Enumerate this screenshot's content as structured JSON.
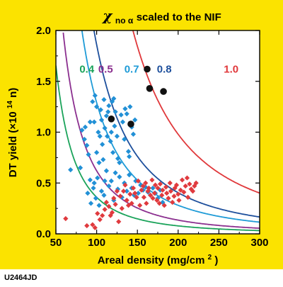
{
  "figure_id": "U2464JD",
  "chart_data": {
    "type": "scatter",
    "title_symbol": "χ",
    "title_subscript": "no α",
    "title_rest": " scaled to the NIF",
    "xlabel_main": "Areal density (mg/cm",
    "xlabel_sup": "2",
    "xlabel_end": ")",
    "ylabel_main": "DT yield (×10",
    "ylabel_sup": "14",
    "ylabel_end": " n)",
    "xlim": [
      50,
      300
    ],
    "ylim": [
      0,
      2.0
    ],
    "xticks": [
      50,
      100,
      150,
      200,
      250,
      300
    ],
    "yticks": [
      0.0,
      0.5,
      1.0,
      1.5,
      2.0
    ],
    "ytick_labels": [
      "0.0",
      "0.5",
      "1.0",
      "1.5",
      "2.0"
    ],
    "curves": [
      {
        "label": "0.4",
        "color": "#1aa35a",
        "k": 36,
        "label_x": 88,
        "label_y": 1.62
      },
      {
        "label": "0.5",
        "color": "#8b2f8f",
        "k": 62,
        "label_x": 111,
        "label_y": 1.62
      },
      {
        "label": "0.7",
        "color": "#1e9bd7",
        "k": 129,
        "label_x": 143,
        "label_y": 1.62
      },
      {
        "label": "0.8",
        "color": "#1d4f9c",
        "k": 186,
        "label_x": 183,
        "label_y": 1.62
      },
      {
        "label": "1.0",
        "color": "#e0383b",
        "k": 450,
        "label_x": 265,
        "label_y": 1.62
      }
    ],
    "series": [
      {
        "marker": "diamond",
        "color": "#2190d6",
        "points": [
          [
            68,
            0.63
          ],
          [
            80,
            0.65
          ],
          [
            82,
            1.02
          ],
          [
            85,
            0.93
          ],
          [
            86,
            1.05
          ],
          [
            88,
            0.87
          ],
          [
            90,
            0.78
          ],
          [
            92,
            1.1
          ],
          [
            92,
            0.53
          ],
          [
            95,
            1.3
          ],
          [
            97,
            1.1
          ],
          [
            97,
            0.5
          ],
          [
            98,
            1.36
          ],
          [
            100,
            1.25
          ],
          [
            100,
            0.8
          ],
          [
            102,
            1.0
          ],
          [
            103,
            0.7
          ],
          [
            104,
            0.96
          ],
          [
            105,
            1.22
          ],
          [
            106,
            1.12
          ],
          [
            107,
            0.88
          ],
          [
            108,
            0.73
          ],
          [
            109,
            1.32
          ],
          [
            110,
            1.04
          ],
          [
            110,
            0.52
          ],
          [
            112,
            1.16
          ],
          [
            113,
            0.96
          ],
          [
            114,
            1.2
          ],
          [
            115,
            1.26
          ],
          [
            117,
            0.91
          ],
          [
            118,
            1.0
          ],
          [
            119,
            1.3
          ],
          [
            120,
            0.8
          ],
          [
            121,
            1.33
          ],
          [
            122,
            1.06
          ],
          [
            123,
            1.2
          ],
          [
            125,
            0.96
          ],
          [
            126,
            0.74
          ],
          [
            128,
            0.7
          ],
          [
            130,
            1.17
          ],
          [
            132,
            1.1
          ],
          [
            134,
            0.93
          ],
          [
            135,
            1.23
          ],
          [
            137,
            1.18
          ],
          [
            139,
            0.81
          ],
          [
            140,
            0.76
          ],
          [
            141,
            1.25
          ],
          [
            143,
            1.05
          ],
          [
            145,
            0.98
          ],
          [
            147,
            1.12
          ],
          [
            89,
            0.4
          ],
          [
            93,
            0.3
          ],
          [
            96,
            0.45
          ],
          [
            99,
            0.35
          ],
          [
            101,
            0.55
          ],
          [
            103,
            0.28
          ],
          [
            106,
            0.42
          ],
          [
            109,
            0.38
          ],
          [
            112,
            0.62
          ],
          [
            115,
            0.47
          ],
          [
            118,
            0.52
          ],
          [
            121,
            0.33
          ],
          [
            123,
            0.6
          ],
          [
            126,
            0.44
          ],
          [
            128,
            0.56
          ],
          [
            131,
            0.36
          ],
          [
            134,
            0.5
          ],
          [
            137,
            0.42
          ],
          [
            140,
            0.58
          ],
          [
            143,
            0.45
          ],
          [
            146,
            0.38
          ],
          [
            148,
            0.52
          ],
          [
            151,
            0.4
          ],
          [
            154,
            0.48
          ],
          [
            157,
            0.43
          ],
          [
            160,
            0.46
          ],
          [
            163,
            0.41
          ],
          [
            166,
            0.38
          ],
          [
            169,
            0.45
          ],
          [
            172,
            0.4
          ],
          [
            175,
            0.35
          ],
          [
            178,
            0.43
          ],
          [
            181,
            0.31
          ]
        ]
      },
      {
        "marker": "diamond",
        "color": "#e03a3e",
        "points": [
          [
            62,
            0.15
          ],
          [
            88,
            0.08
          ],
          [
            95,
            0.09
          ],
          [
            98,
            0.06
          ],
          [
            101,
            0.2
          ],
          [
            104,
            0.14
          ],
          [
            107,
            0.18
          ],
          [
            110,
            0.24
          ],
          [
            112,
            0.31
          ],
          [
            115,
            0.27
          ],
          [
            117,
            0.18
          ],
          [
            119,
            0.21
          ],
          [
            121,
            0.35
          ],
          [
            123,
            0.29
          ],
          [
            125,
            0.42
          ],
          [
            127,
            0.12
          ],
          [
            129,
            0.37
          ],
          [
            131,
            0.25
          ],
          [
            133,
            0.42
          ],
          [
            135,
            0.48
          ],
          [
            137,
            0.33
          ],
          [
            139,
            0.28
          ],
          [
            141,
            0.39
          ],
          [
            143,
            0.3
          ],
          [
            145,
            0.45
          ],
          [
            147,
            0.4
          ],
          [
            149,
            0.36
          ],
          [
            151,
            0.52
          ],
          [
            153,
            0.28
          ],
          [
            155,
            0.43
          ],
          [
            157,
            0.47
          ],
          [
            158,
            0.36
          ],
          [
            160,
            0.5
          ],
          [
            161,
            0.3
          ],
          [
            163,
            0.42
          ],
          [
            164,
            0.45
          ],
          [
            166,
            0.38
          ],
          [
            168,
            0.53
          ],
          [
            169,
            0.35
          ],
          [
            171,
            0.4
          ],
          [
            172,
            0.48
          ],
          [
            174,
            0.33
          ],
          [
            175,
            0.45
          ],
          [
            177,
            0.3
          ],
          [
            178,
            0.49
          ],
          [
            180,
            0.38
          ],
          [
            181,
            0.43
          ],
          [
            183,
            0.28
          ],
          [
            185,
            0.46
          ],
          [
            186,
            0.4
          ],
          [
            188,
            0.35
          ],
          [
            190,
            0.5
          ],
          [
            191,
            0.42
          ],
          [
            193,
            0.31
          ],
          [
            195,
            0.37
          ],
          [
            196,
            0.45
          ],
          [
            198,
            0.48
          ],
          [
            200,
            0.39
          ],
          [
            201,
            0.33
          ],
          [
            203,
            0.43
          ],
          [
            205,
            0.53
          ],
          [
            207,
            0.41
          ],
          [
            209,
            0.47
          ],
          [
            211,
            0.55
          ],
          [
            212,
            0.36
          ],
          [
            214,
            0.49
          ],
          [
            216,
            0.44
          ],
          [
            218,
            0.42
          ],
          [
            220,
            0.47
          ],
          [
            222,
            0.5
          ]
        ]
      },
      {
        "marker": "circle",
        "color": "#111111",
        "points": [
          [
            118,
            1.13
          ],
          [
            142,
            1.08
          ],
          [
            162,
            1.62
          ],
          [
            165,
            1.43
          ],
          [
            182,
            1.4
          ]
        ]
      }
    ]
  }
}
